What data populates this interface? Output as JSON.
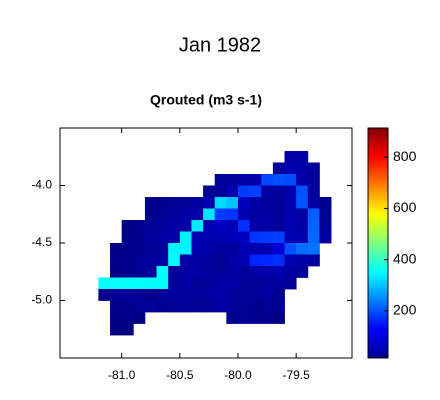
{
  "chart_data": {
    "type": "heatmap",
    "title": "Jan 1982",
    "subtitle": "Qrouted (m3 s-1)",
    "x": [
      -81.15,
      -81.05,
      -80.95,
      -80.85,
      -80.75,
      -80.65,
      -80.55,
      -80.45,
      -80.35,
      -80.25,
      -80.15,
      -80.05,
      -79.95,
      -79.85,
      -79.75,
      -79.65,
      -79.55,
      -79.45,
      -79.35,
      -79.25
    ],
    "y": [
      -3.75,
      -3.85,
      -3.95,
      -4.05,
      -4.15,
      -4.25,
      -4.35,
      -4.45,
      -4.55,
      -4.65,
      -4.75,
      -4.85,
      -4.95,
      -5.05,
      -5.15,
      -5.25
    ],
    "z": [
      [
        null,
        null,
        null,
        null,
        null,
        null,
        null,
        null,
        null,
        null,
        null,
        null,
        null,
        null,
        null,
        null,
        45,
        50,
        null,
        null
      ],
      [
        null,
        null,
        null,
        null,
        null,
        null,
        null,
        null,
        null,
        null,
        null,
        null,
        null,
        null,
        null,
        40,
        60,
        55,
        40,
        null
      ],
      [
        null,
        null,
        null,
        null,
        null,
        null,
        null,
        null,
        null,
        null,
        35,
        40,
        45,
        50,
        190,
        200,
        195,
        50,
        40,
        null
      ],
      [
        null,
        null,
        null,
        null,
        null,
        null,
        null,
        null,
        null,
        30,
        40,
        60,
        180,
        185,
        45,
        40,
        55,
        200,
        45,
        null
      ],
      [
        null,
        null,
        null,
        null,
        25,
        30,
        35,
        40,
        45,
        60,
        320,
        300,
        70,
        50,
        40,
        35,
        60,
        205,
        45,
        30
      ],
      [
        null,
        null,
        null,
        null,
        30,
        35,
        40,
        45,
        50,
        330,
        180,
        175,
        60,
        45,
        50,
        40,
        55,
        45,
        210,
        35
      ],
      [
        null,
        null,
        20,
        30,
        35,
        40,
        45,
        50,
        335,
        60,
        70,
        65,
        170,
        50,
        45,
        40,
        60,
        50,
        215,
        40
      ],
      [
        null,
        null,
        25,
        30,
        40,
        45,
        50,
        340,
        60,
        55,
        60,
        65,
        70,
        175,
        180,
        185,
        60,
        55,
        220,
        45
      ],
      [
        null,
        20,
        25,
        30,
        35,
        40,
        345,
        340,
        55,
        50,
        45,
        40,
        60,
        55,
        60,
        90,
        200,
        225,
        230,
        null
      ],
      [
        null,
        25,
        30,
        35,
        40,
        45,
        350,
        50,
        45,
        40,
        35,
        50,
        55,
        160,
        165,
        170,
        60,
        50,
        45,
        null
      ],
      [
        null,
        20,
        30,
        35,
        40,
        355,
        40,
        45,
        50,
        40,
        35,
        45,
        40,
        50,
        55,
        60,
        45,
        40,
        null,
        null
      ],
      [
        360,
        360,
        360,
        358,
        356,
        355,
        40,
        45,
        35,
        40,
        45,
        50,
        40,
        35,
        45,
        40,
        35,
        null,
        null,
        null
      ],
      [
        30,
        35,
        40,
        35,
        30,
        40,
        45,
        35,
        40,
        45,
        50,
        40,
        35,
        40,
        45,
        30,
        null,
        null,
        null,
        null
      ],
      [
        null,
        25,
        30,
        35,
        40,
        30,
        35,
        40,
        35,
        40,
        45,
        40,
        35,
        30,
        35,
        30,
        null,
        null,
        null,
        null
      ],
      [
        null,
        20,
        25,
        20,
        null,
        null,
        null,
        null,
        null,
        null,
        null,
        30,
        35,
        30,
        25,
        20,
        null,
        null,
        null,
        null
      ],
      [
        null,
        16,
        18,
        null,
        null,
        null,
        null,
        null,
        null,
        null,
        null,
        null,
        null,
        null,
        null,
        null,
        null,
        null,
        null,
        null
      ]
    ],
    "cell_size": 0.1,
    "xlim": [
      -81.53,
      -79.02
    ],
    "ylim": [
      -5.5,
      -3.5
    ],
    "xticks": [
      {
        "value": -81,
        "label": "-81.0"
      },
      -80.5,
      {
        "value": -80,
        "label": "-80.0"
      },
      -79.5
    ],
    "yticks": [
      {
        "value": -4,
        "label": "-4.0"
      },
      -4.5,
      {
        "value": -5,
        "label": "-5.0"
      }
    ],
    "clim": [
      16,
      914
    ],
    "cticks": [
      200,
      400,
      600,
      800
    ],
    "colormap": "jet"
  }
}
